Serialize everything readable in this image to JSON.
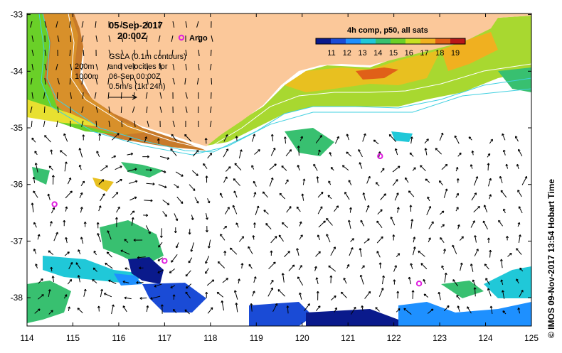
{
  "map": {
    "date": "05-Sep-2017",
    "time": "20:00Z",
    "argo_label": "Argo",
    "gsla_lines": [
      "GSLA (0.1m contours)",
      "and velocities for",
      "06-Sep 00:00Z",
      "0.5m/s (1kt 24h)"
    ],
    "depth_labels": [
      "200m",
      "1000m"
    ],
    "colorbar": {
      "title": "4h comp, p50, all sats",
      "ticks": [
        "11",
        "12",
        "13",
        "14",
        "15",
        "16",
        "17",
        "18",
        "19"
      ],
      "colors": [
        "#0a1a8c",
        "#1a4bd6",
        "#1e90ff",
        "#20c8d8",
        "#38c070",
        "#6ad028",
        "#c8e020",
        "#f0b020",
        "#e06018",
        "#b81818"
      ]
    },
    "x_ticks": [
      "114",
      "115",
      "116",
      "117",
      "118",
      "119",
      "120",
      "121",
      "122",
      "123",
      "124",
      "125"
    ],
    "y_ticks": [
      "-33",
      "-34",
      "-35",
      "-36",
      "-37",
      "-38"
    ],
    "argo_positions": [
      {
        "lon": 114.6,
        "lat": -36.35
      },
      {
        "lon": 117.0,
        "lat": -37.35
      },
      {
        "lon": 121.7,
        "lat": -35.5
      },
      {
        "lon": 122.55,
        "lat": -37.75
      }
    ],
    "credit": "© IMOS 09-Nov-2017 13:54 Hobart Time",
    "colors": {
      "land": "#fbc89a",
      "argo": "#e020e0",
      "contour": "#40d0e0"
    }
  }
}
